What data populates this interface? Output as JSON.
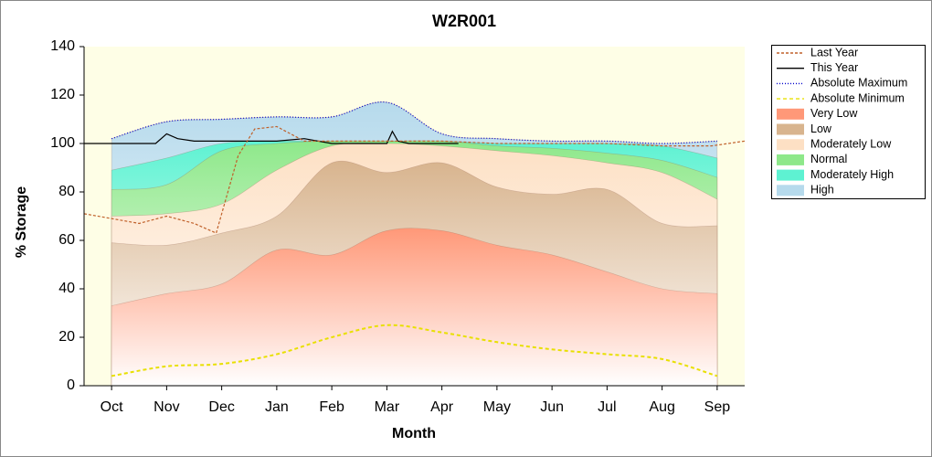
{
  "chart_data": {
    "type": "area",
    "title": "W2R001",
    "x_label": "Month",
    "y_label": "% Storage",
    "x": [
      0,
      1,
      2,
      3,
      4,
      5,
      6,
      7,
      8,
      9,
      10,
      11
    ],
    "xlim": [
      -0.5,
      11.5
    ],
    "xticks": [
      {
        "value": 0,
        "label": "Oct"
      },
      {
        "value": 1,
        "label": "Nov"
      },
      {
        "value": 2,
        "label": "Dec"
      },
      {
        "value": 3,
        "label": "Jan"
      },
      {
        "value": 4,
        "label": "Feb"
      },
      {
        "value": 5,
        "label": "Mar"
      },
      {
        "value": 6,
        "label": "Apr"
      },
      {
        "value": 7,
        "label": "May"
      },
      {
        "value": 8,
        "label": "Jun"
      },
      {
        "value": 9,
        "label": "Jul"
      },
      {
        "value": 10,
        "label": "Aug"
      },
      {
        "value": 11,
        "label": "Sep"
      }
    ],
    "ylim": [
      0,
      140
    ],
    "yticks": [
      0,
      20,
      40,
      60,
      80,
      100,
      120,
      140
    ],
    "legend": "outside-right",
    "series": [
      {
        "name": "Last Year",
        "type": "line",
        "color": "#c0602a",
        "dash": "3,2",
        "x": [
          -0.5,
          0,
          0.5,
          1,
          1.5,
          1.9,
          2.3,
          2.6,
          3,
          3.5,
          4,
          4.5,
          5,
          6,
          7,
          8,
          9,
          10,
          10.9,
          11.5
        ],
        "values": [
          71,
          69,
          67,
          70,
          67,
          63,
          95,
          106,
          107,
          101,
          101,
          101,
          101,
          101,
          100,
          100,
          100,
          99,
          99,
          101
        ]
      },
      {
        "name": "This Year",
        "type": "line",
        "color": "#000000",
        "dash": "",
        "x": [
          -0.5,
          0,
          0.8,
          1,
          1.2,
          1.5,
          2,
          3,
          3.5,
          4,
          5,
          5.1,
          5.2,
          5.4,
          6.3
        ],
        "values": [
          100,
          100,
          100,
          104,
          102,
          101,
          101,
          101,
          102,
          100,
          100,
          105,
          101,
          100,
          100
        ]
      },
      {
        "name": "Absolute Maximum",
        "type": "line",
        "color": "#0000cc",
        "dash": "1,2",
        "values": [
          102,
          109,
          110,
          111,
          111,
          117,
          104,
          102,
          101,
          101,
          100,
          101
        ]
      },
      {
        "name": "Absolute Minimum",
        "type": "line",
        "color": "#e8e000",
        "dash": "4,3",
        "values": [
          4,
          8,
          9,
          13,
          20,
          25,
          22,
          18,
          15,
          13,
          11,
          4
        ]
      },
      {
        "name": "Very Low",
        "type": "area",
        "color": "#ff9878",
        "values": [
          33,
          38,
          42,
          56,
          54,
          64,
          64,
          58,
          54,
          47,
          40,
          38
        ]
      },
      {
        "name": "Low",
        "type": "area",
        "color": "#d8b48e",
        "values": [
          59,
          58,
          63,
          70,
          92,
          88,
          92,
          82,
          79,
          81,
          67,
          66
        ]
      },
      {
        "name": "Moderately Low",
        "type": "area",
        "color": "#fde0c4",
        "values": [
          70,
          71,
          75,
          89,
          99,
          100,
          99,
          97,
          95,
          92,
          88,
          77
        ]
      },
      {
        "name": "Normal",
        "type": "area",
        "color": "#8ee88a",
        "values": [
          81,
          83,
          97,
          100,
          101,
          101,
          101,
          99,
          98,
          96,
          93,
          86
        ]
      },
      {
        "name": "Moderately High",
        "type": "area",
        "color": "#5ef2d2",
        "values": [
          89,
          94,
          100,
          101,
          101,
          101,
          101,
          100,
          100,
          100,
          99,
          94
        ]
      },
      {
        "name": "High",
        "type": "area",
        "color": "#b6daec",
        "values": [
          102,
          109,
          110,
          111,
          111,
          117,
          104,
          102,
          101,
          101,
          100,
          101
        ]
      }
    ]
  }
}
